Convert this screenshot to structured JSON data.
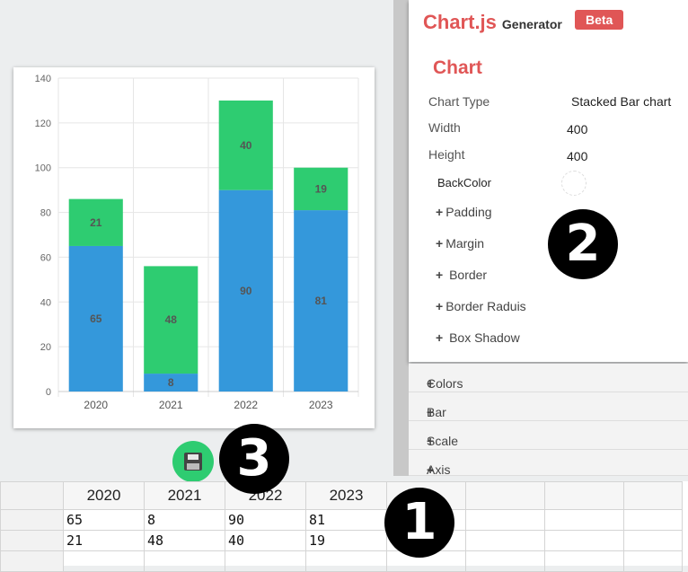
{
  "app": {
    "brand": "Chart.js",
    "brand_sub": "Generator",
    "badge": "Beta"
  },
  "panel": {
    "section_title": "Chart",
    "chart_type_label": "Chart Type",
    "chart_type_value": "Stacked Bar chart",
    "width_label": "Width",
    "width_value": "400",
    "height_label": "Height",
    "height_value": "400",
    "backcolor_label": "BackColor",
    "expanders": [
      "Padding",
      "Margin",
      "Border",
      "Border Raduis",
      "Box Shadow"
    ]
  },
  "accordions": [
    "Colors",
    "Bar",
    "Scale",
    "Axis"
  ],
  "annotations": {
    "one": "1",
    "two": "2",
    "three": "3"
  },
  "grid": {
    "headers": [
      "2020",
      "2021",
      "2022",
      "2023"
    ],
    "rows": [
      [
        "65",
        "8",
        "90",
        "81"
      ],
      [
        "21",
        "48",
        "40",
        "19"
      ]
    ]
  },
  "chart_data": {
    "type": "bar",
    "stacked": true,
    "categories": [
      "2020",
      "2021",
      "2022",
      "2023"
    ],
    "series": [
      {
        "values": [
          65,
          8,
          90,
          81
        ],
        "color": "#3498db"
      },
      {
        "values": [
          21,
          48,
          40,
          19
        ],
        "color": "#2ecc71"
      }
    ],
    "ylim": [
      0,
      140
    ],
    "yticks": [
      0,
      20,
      40,
      60,
      80,
      100,
      120,
      140
    ],
    "grid": true,
    "title": "",
    "xlabel": "",
    "ylabel": ""
  }
}
